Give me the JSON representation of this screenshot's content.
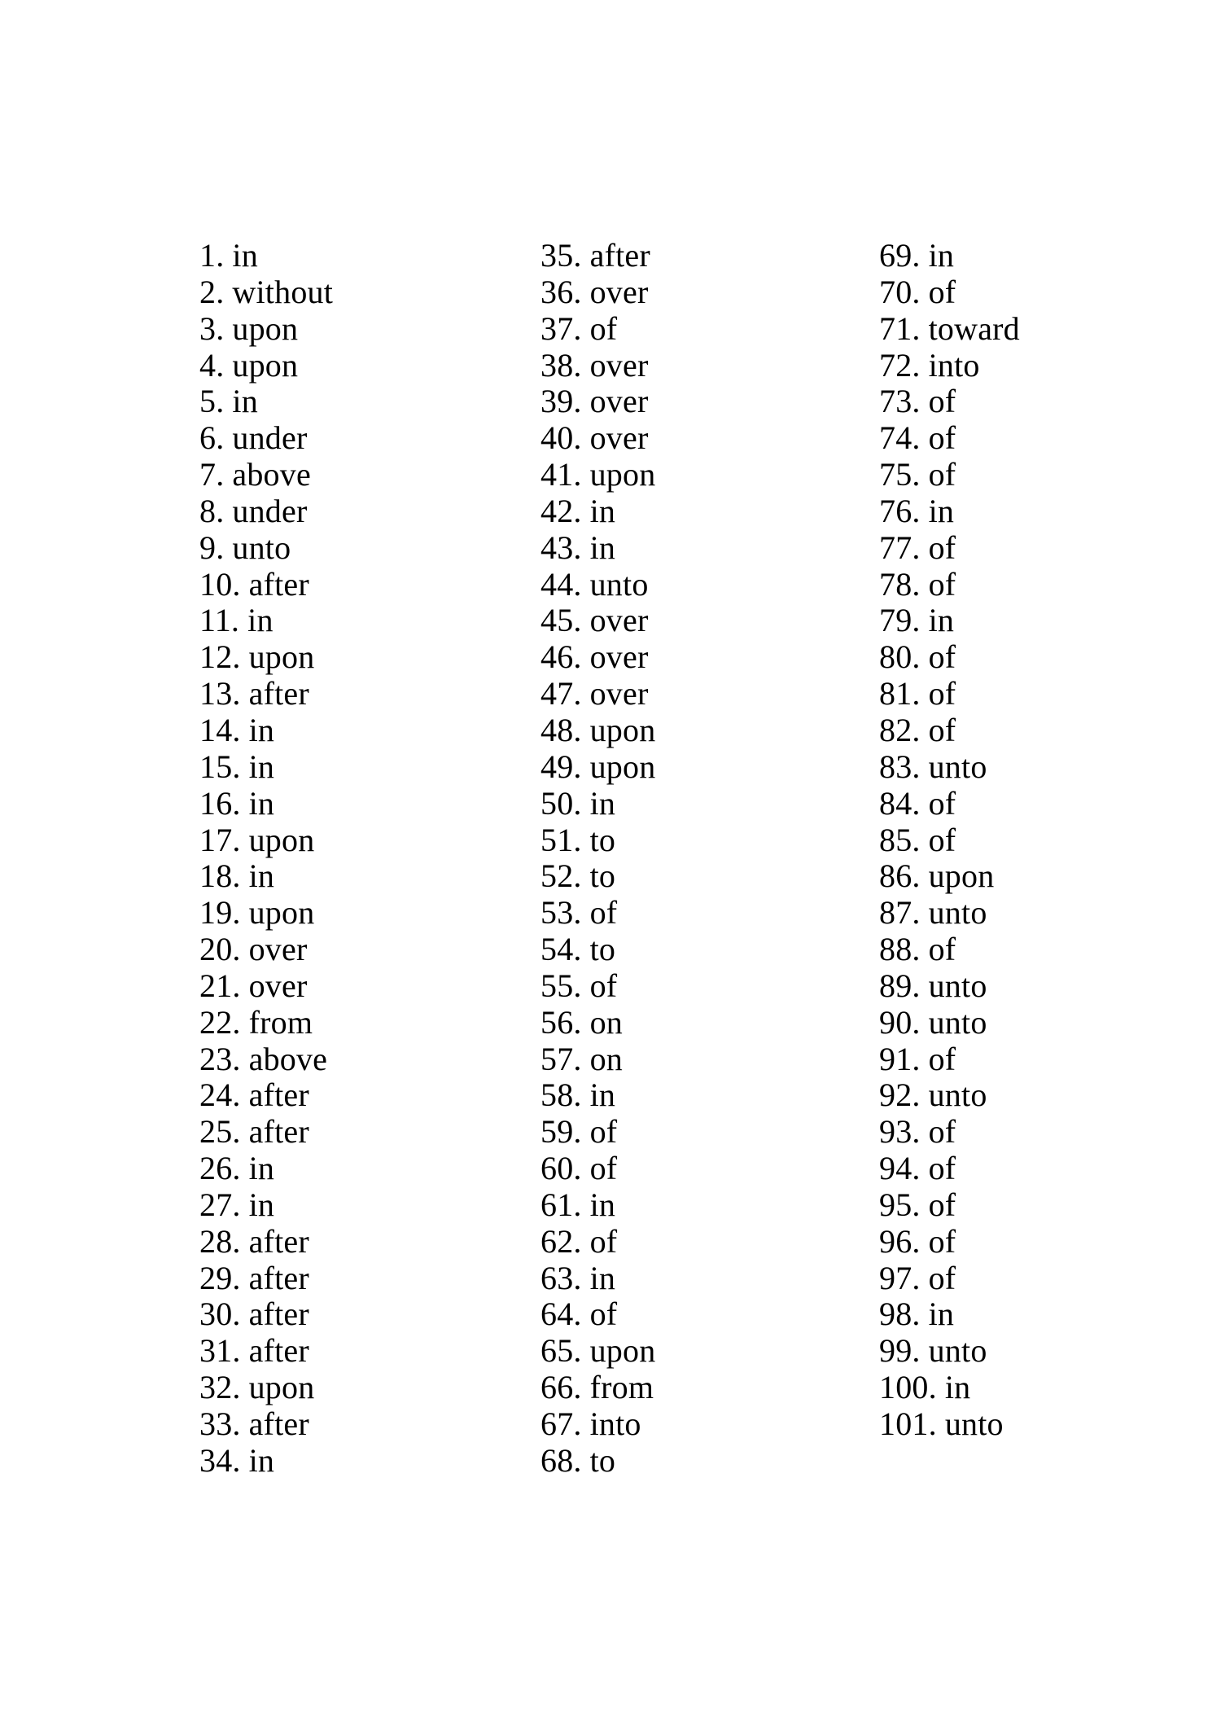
{
  "page": {
    "background_color": "#ffffff",
    "text_color": "#000000"
  },
  "columns": [
    {
      "items": [
        {
          "label": "1.",
          "word": "in"
        },
        {
          "label": "2.",
          "word": "without"
        },
        {
          "label": "3.",
          "word": "upon"
        },
        {
          "label": "4.",
          "word": "upon"
        },
        {
          "label": "5.",
          "word": "in"
        },
        {
          "label": "6.",
          "word": "under"
        },
        {
          "label": "7.",
          "word": "above"
        },
        {
          "label": "8.",
          "word": "under"
        },
        {
          "label": "9.",
          "word": "unto"
        },
        {
          "label": "10.",
          "word": "after"
        },
        {
          "label": "11.",
          "word": "in"
        },
        {
          "label": "12.",
          "word": "upon"
        },
        {
          "label": "13.",
          "word": "after"
        },
        {
          "label": "14.",
          "word": "in"
        },
        {
          "label": "15.",
          "word": "in"
        },
        {
          "label": "16.",
          "word": "in"
        },
        {
          "label": "17.",
          "word": "upon"
        },
        {
          "label": "18.",
          "word": "in"
        },
        {
          "label": "19.",
          "word": "upon"
        },
        {
          "label": "20.",
          "word": "over"
        },
        {
          "label": "21.",
          "word": "over"
        },
        {
          "label": "22.",
          "word": "from"
        },
        {
          "label": "23.",
          "word": "above"
        },
        {
          "label": "24.",
          "word": "after"
        },
        {
          "label": "25.",
          "word": "after"
        },
        {
          "label": "26.",
          "word": "in"
        },
        {
          "label": "27.",
          "word": "in"
        },
        {
          "label": "28.",
          "word": "after"
        },
        {
          "label": "29.",
          "word": "after"
        },
        {
          "label": "30.",
          "word": "after"
        },
        {
          "label": "31.",
          "word": "after"
        },
        {
          "label": "32.",
          "word": "upon"
        },
        {
          "label": "33.",
          "word": "after"
        },
        {
          "label": "34.",
          "word": "in"
        }
      ]
    },
    {
      "items": [
        {
          "label": "35.",
          "word": "after"
        },
        {
          "label": "36.",
          "word": "over"
        },
        {
          "label": "37.",
          "word": "of"
        },
        {
          "label": "38.",
          "word": "over"
        },
        {
          "label": "39.",
          "word": "over"
        },
        {
          "label": "40.",
          "word": "over"
        },
        {
          "label": "41.",
          "word": "upon"
        },
        {
          "label": "42.",
          "word": "in"
        },
        {
          "label": "43.",
          "word": "in"
        },
        {
          "label": "44.",
          "word": "unto"
        },
        {
          "label": "45.",
          "word": "over"
        },
        {
          "label": "46.",
          "word": "over"
        },
        {
          "label": "47.",
          "word": "over"
        },
        {
          "label": "48.",
          "word": "upon"
        },
        {
          "label": "49.",
          "word": "upon"
        },
        {
          "label": "50.",
          "word": "in"
        },
        {
          "label": "51.",
          "word": "to"
        },
        {
          "label": "52.",
          "word": "to"
        },
        {
          "label": "53.",
          "word": "of"
        },
        {
          "label": "54.",
          "word": "to"
        },
        {
          "label": "55.",
          "word": "of"
        },
        {
          "label": "56.",
          "word": "on"
        },
        {
          "label": "57.",
          "word": "on"
        },
        {
          "label": "58.",
          "word": "in"
        },
        {
          "label": "59.",
          "word": "of"
        },
        {
          "label": "60.",
          "word": "of"
        },
        {
          "label": "61.",
          "word": "in"
        },
        {
          "label": "62.",
          "word": "of"
        },
        {
          "label": "63.",
          "word": "in"
        },
        {
          "label": "64.",
          "word": "of"
        },
        {
          "label": "65.",
          "word": "upon"
        },
        {
          "label": "66.",
          "word": "from"
        },
        {
          "label": "67.",
          "word": "into"
        },
        {
          "label": "68.",
          "word": "to"
        }
      ]
    },
    {
      "items": [
        {
          "label": "69.",
          "word": "in"
        },
        {
          "label": "70.",
          "word": "of"
        },
        {
          "label": "71.",
          "word": "toward"
        },
        {
          "label": "72.",
          "word": "into"
        },
        {
          "label": "73.",
          "word": "of"
        },
        {
          "label": "74.",
          "word": "of"
        },
        {
          "label": "75.",
          "word": "of"
        },
        {
          "label": "76.",
          "word": "in"
        },
        {
          "label": "77.",
          "word": "of"
        },
        {
          "label": "78.",
          "word": "of"
        },
        {
          "label": "79.",
          "word": "in"
        },
        {
          "label": "80.",
          "word": "of"
        },
        {
          "label": "81.",
          "word": "of"
        },
        {
          "label": "82.",
          "word": "of"
        },
        {
          "label": "83.",
          "word": "unto"
        },
        {
          "label": "84.",
          "word": "of"
        },
        {
          "label": "85.",
          "word": "of"
        },
        {
          "label": "86.",
          "word": "upon"
        },
        {
          "label": "87.",
          "word": "unto"
        },
        {
          "label": "88.",
          "word": "of"
        },
        {
          "label": "89.",
          "word": "unto"
        },
        {
          "label": "90.",
          "word": "unto"
        },
        {
          "label": "91.",
          "word": "of"
        },
        {
          "label": "92.",
          "word": "unto"
        },
        {
          "label": "93.",
          "word": "of"
        },
        {
          "label": "94.",
          "word": "of"
        },
        {
          "label": "95.",
          "word": "of"
        },
        {
          "label": "96.",
          "word": "of"
        },
        {
          "label": "97.",
          "word": "of"
        },
        {
          "label": "98.",
          "word": "in"
        },
        {
          "label": "99.",
          "word": "unto"
        },
        {
          "label": "100.",
          "word": "in"
        },
        {
          "label": "101.",
          "word": "unto"
        }
      ]
    }
  ]
}
